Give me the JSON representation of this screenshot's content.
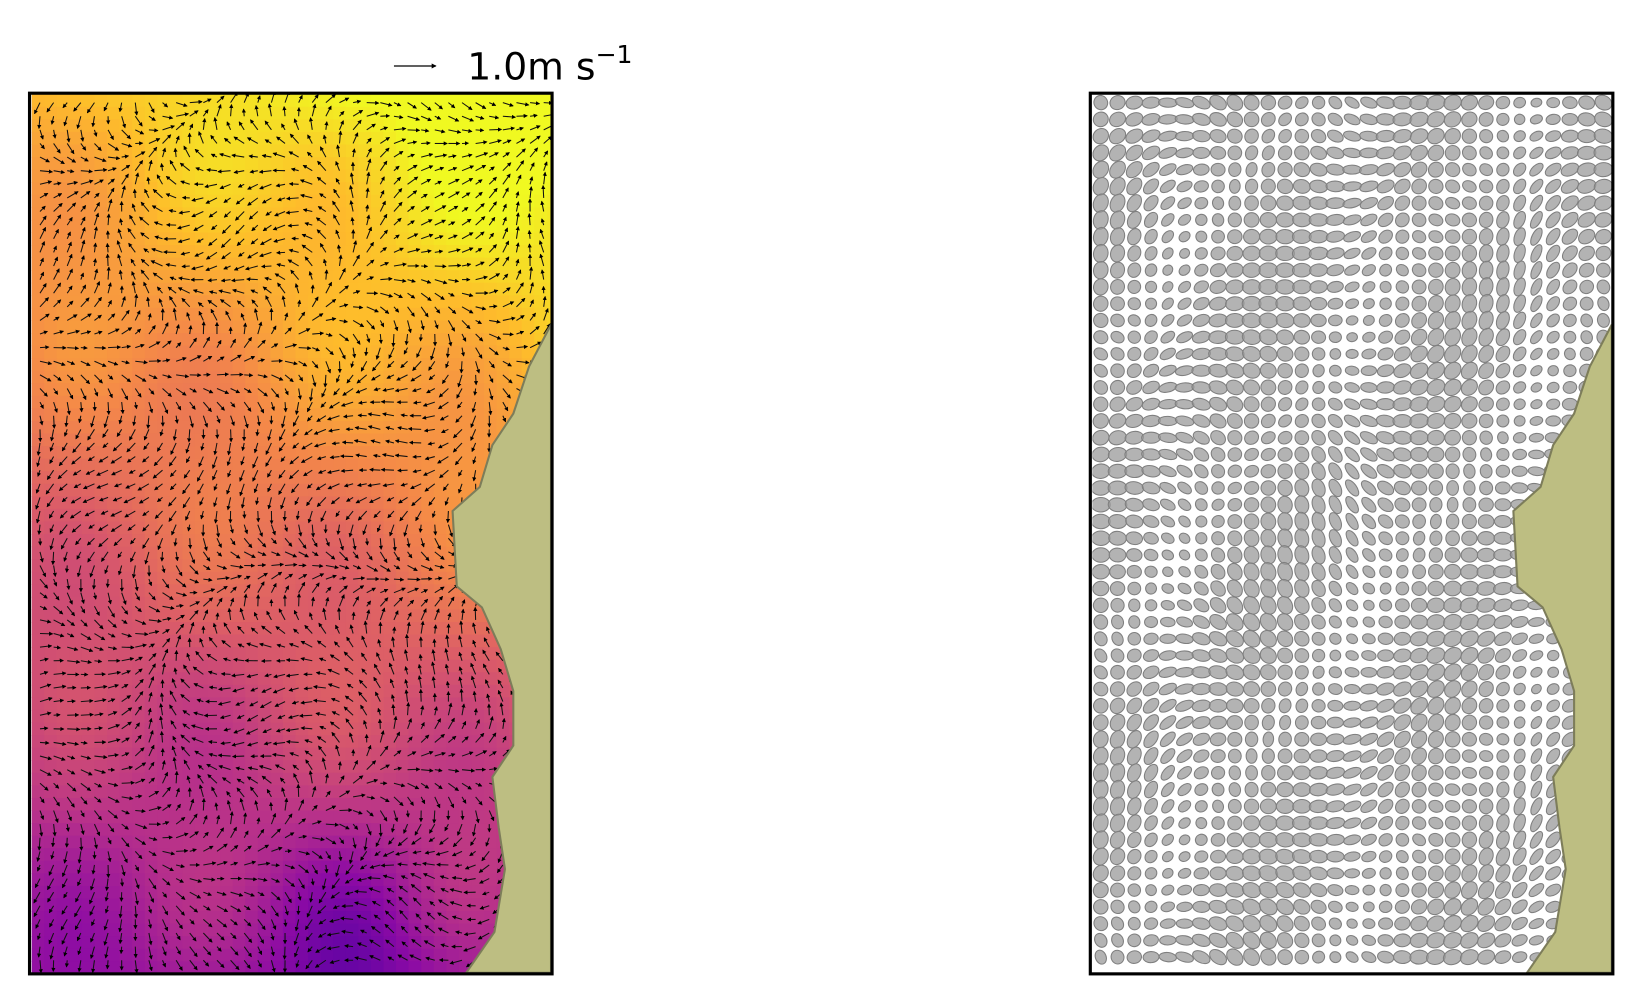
{
  "chart_data": [
    {
      "type": "quiver",
      "quiver_key": {
        "label": "1.0m s",
        "exponent": "−1"
      }
    },
    {
      "type": "ellipse"
    }
  ]
}
